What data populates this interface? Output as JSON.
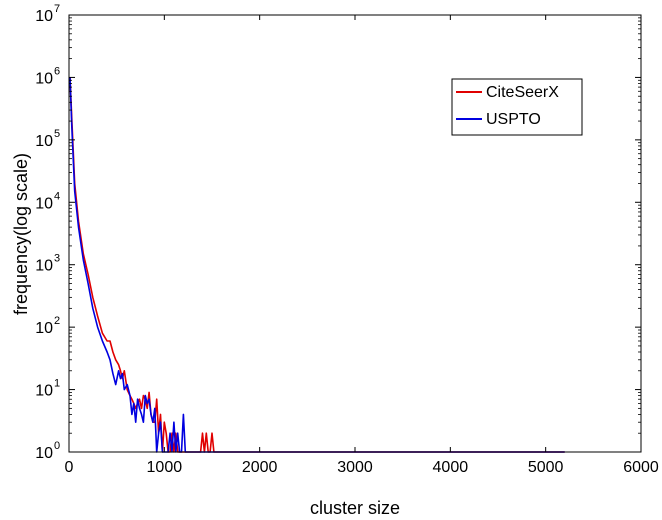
{
  "chart_data": {
    "type": "line",
    "title": "",
    "xlabel": "cluster size",
    "ylabel": "frequency(log scale)",
    "xlim": [
      0,
      6000
    ],
    "ylim": [
      1,
      10000000
    ],
    "yscale": "log",
    "grid": false,
    "legend_position": "top-right",
    "x_ticks": [
      "0",
      "1000",
      "2000",
      "3000",
      "4000",
      "5000",
      "6000"
    ],
    "y_ticks": [
      {
        "base": "10",
        "exp": "0"
      },
      {
        "base": "10",
        "exp": "1"
      },
      {
        "base": "10",
        "exp": "2"
      },
      {
        "base": "10",
        "exp": "3"
      },
      {
        "base": "10",
        "exp": "4"
      },
      {
        "base": "10",
        "exp": "5"
      },
      {
        "base": "10",
        "exp": "6"
      },
      {
        "base": "10",
        "exp": "7"
      }
    ],
    "series": [
      {
        "name": "CiteSeerX",
        "color": "#e00000",
        "x": [
          10,
          30,
          60,
          100,
          150,
          200,
          250,
          300,
          350,
          400,
          430,
          460,
          490,
          520,
          540,
          560,
          580,
          610,
          640,
          660,
          680,
          700,
          720,
          740,
          760,
          780,
          800,
          820,
          840,
          860,
          880,
          900,
          920,
          940,
          960,
          980,
          1000,
          1020,
          1040,
          1060,
          1080,
          1100,
          1120,
          1140,
          1160,
          1180,
          1200,
          1380,
          1400,
          1420,
          1440,
          1460,
          1480,
          1500,
          1520,
          1540,
          1560,
          1600,
          2000,
          3000,
          4000,
          4500,
          4700,
          5000,
          5200
        ],
        "y": [
          1000000,
          200000,
          20000,
          5000,
          1500,
          700,
          300,
          150,
          80,
          60,
          60,
          40,
          30,
          25,
          20,
          15,
          20,
          10,
          8,
          7,
          6,
          5,
          6,
          7,
          5,
          8,
          7,
          5,
          9,
          4,
          3,
          3,
          7,
          2,
          4,
          1,
          3,
          2,
          1,
          1,
          2,
          1,
          2,
          1,
          1,
          1,
          1,
          1,
          2,
          1,
          2,
          1,
          1,
          2,
          1,
          1,
          1,
          1,
          1,
          1,
          1,
          1,
          1,
          1,
          1
        ]
      },
      {
        "name": "USPTO",
        "color": "#0000e0",
        "x": [
          10,
          30,
          60,
          100,
          150,
          200,
          250,
          300,
          350,
          400,
          430,
          460,
          490,
          520,
          540,
          560,
          580,
          610,
          640,
          660,
          680,
          700,
          720,
          740,
          760,
          780,
          800,
          820,
          840,
          860,
          880,
          900,
          920,
          940,
          960,
          980,
          1000,
          1020,
          1040,
          1060,
          1080,
          1100,
          1120,
          1140,
          1160,
          1180,
          1200,
          1220,
          1300,
          2000,
          3000,
          4000,
          5000,
          5200
        ],
        "y": [
          1000000,
          150000,
          15000,
          4000,
          1200,
          500,
          200,
          100,
          60,
          40,
          30,
          18,
          12,
          20,
          15,
          18,
          10,
          12,
          8,
          4,
          6,
          3,
          7,
          5,
          4,
          3,
          8,
          6,
          7,
          4,
          3,
          5,
          1,
          2,
          3,
          1,
          1,
          1,
          1,
          2,
          1,
          3,
          1,
          2,
          1,
          1,
          4,
          1,
          1,
          1,
          1,
          1,
          1,
          1
        ]
      }
    ]
  }
}
